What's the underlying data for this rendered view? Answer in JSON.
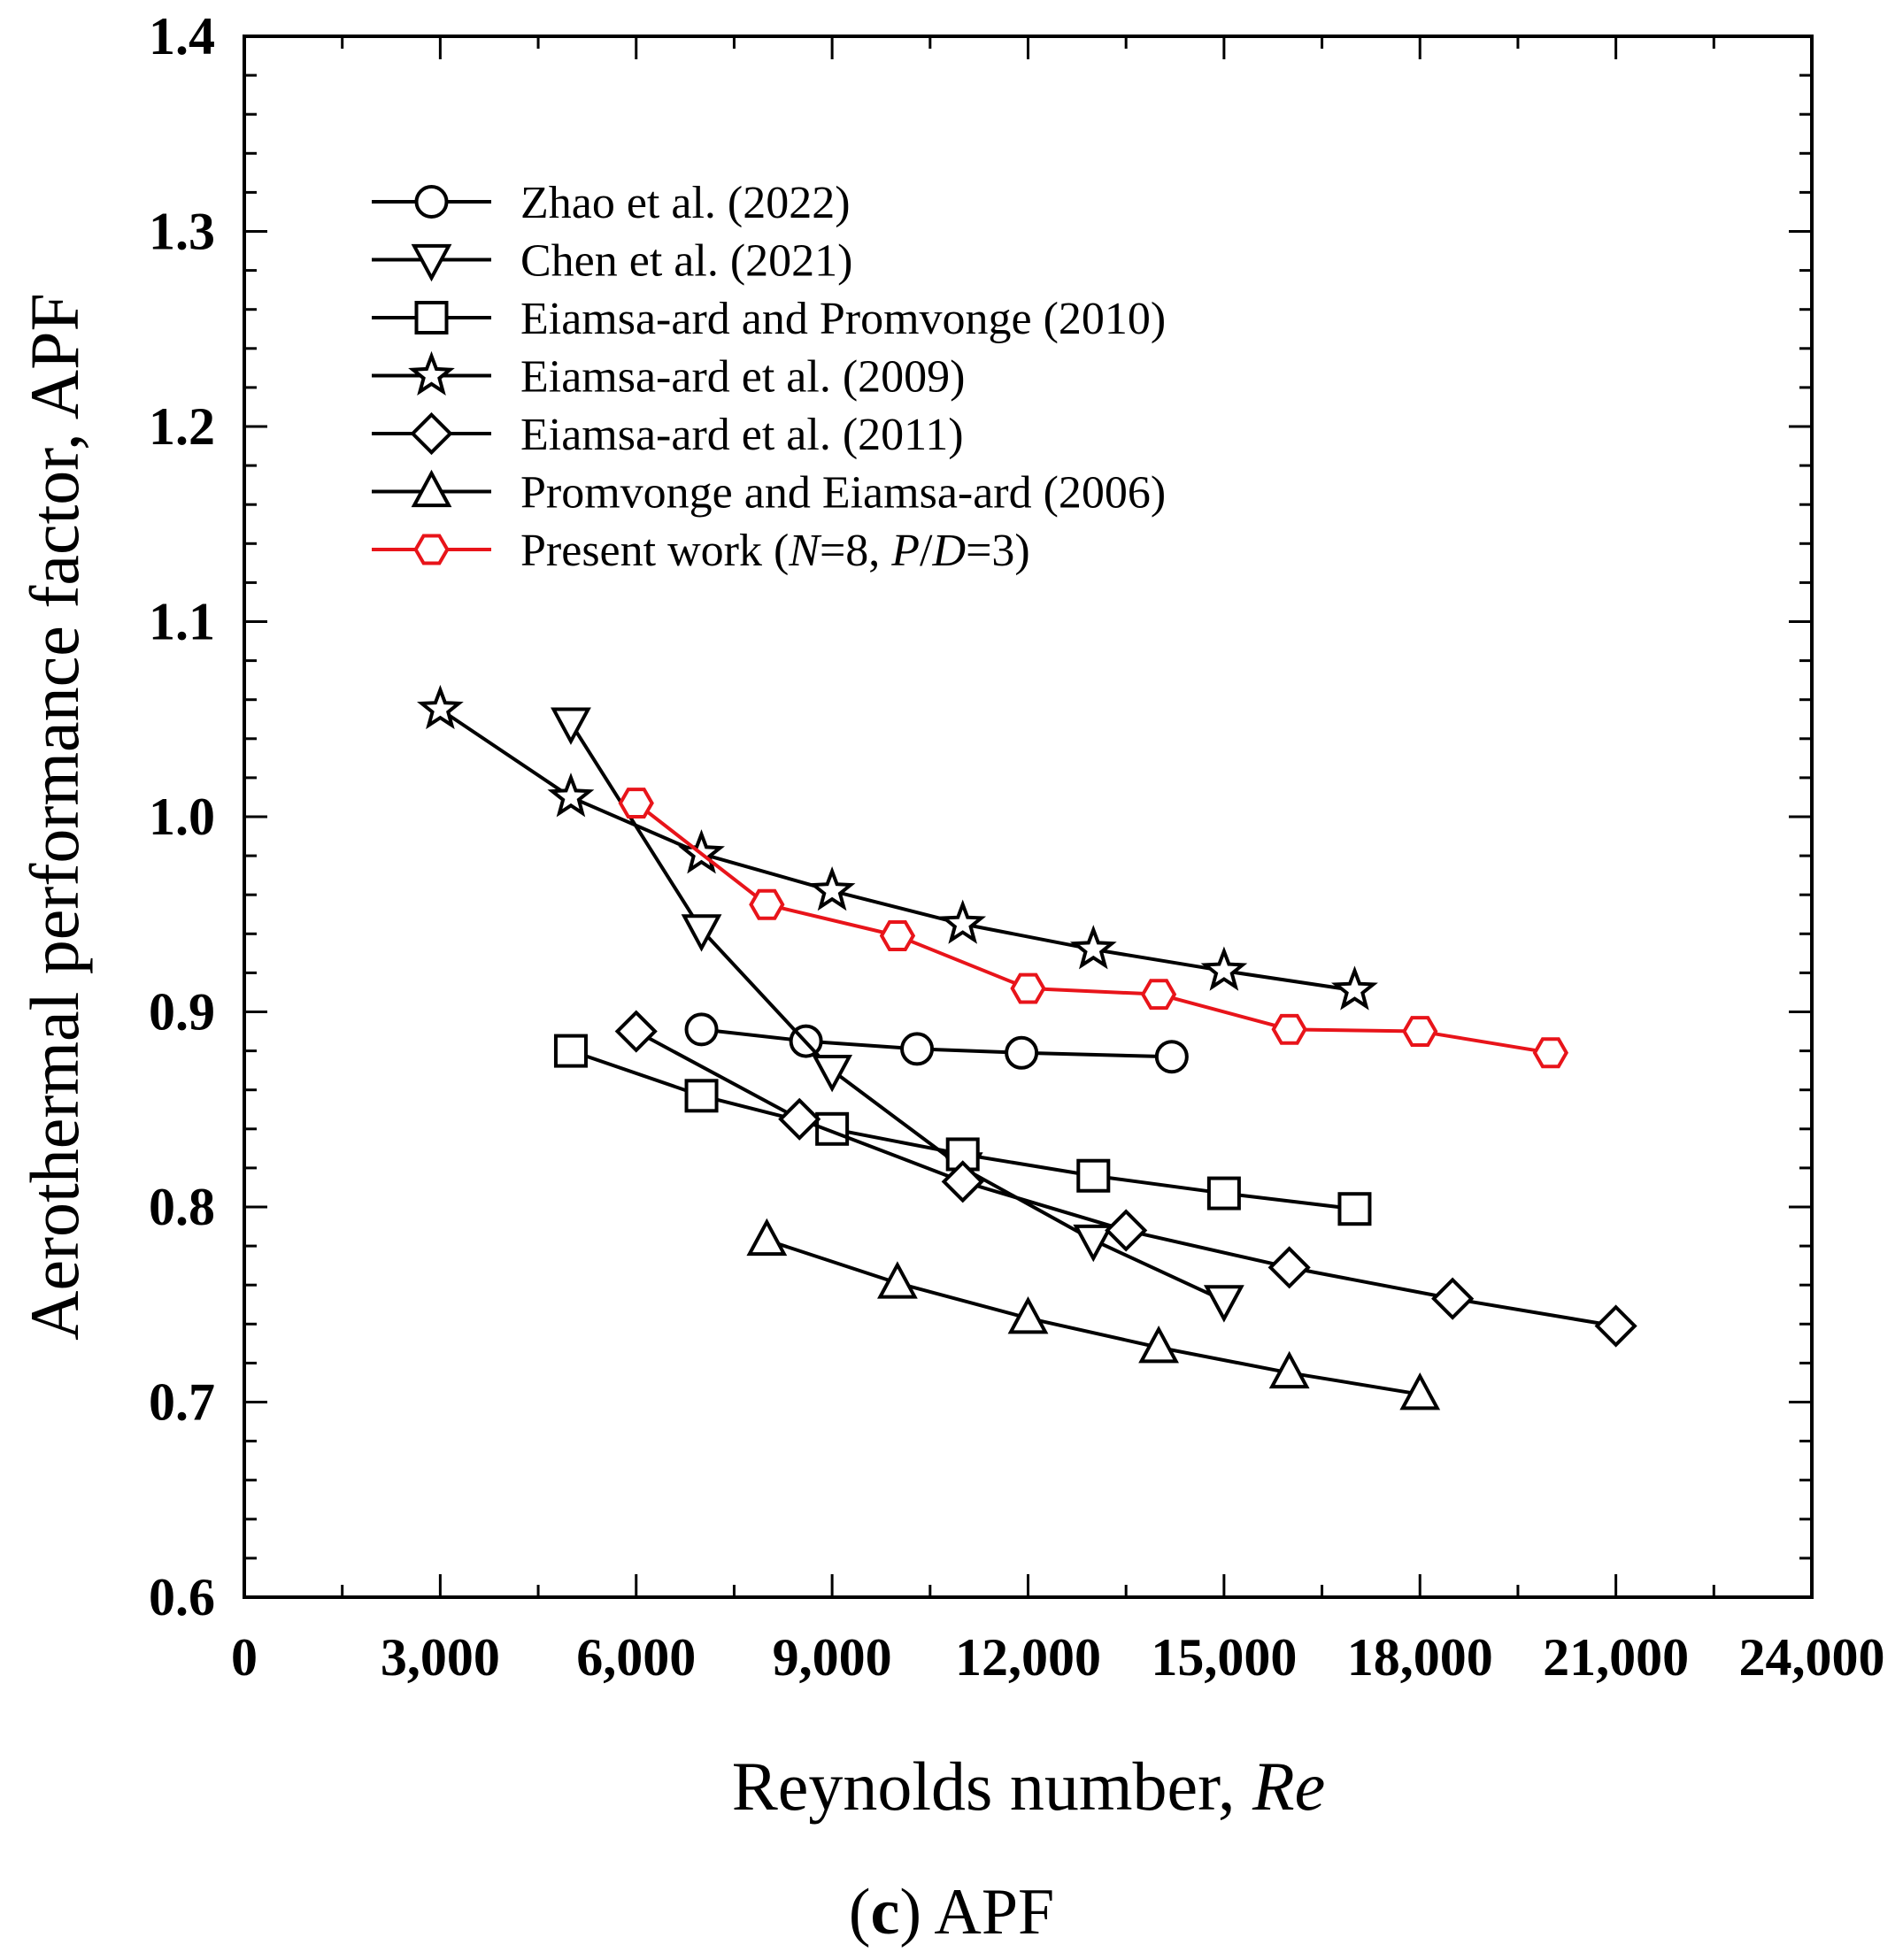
{
  "chart_data": {
    "type": "line",
    "xlabel": "Reynolds number, ",
    "xlabel_italic": "Re",
    "ylabel": "Aerothermal performance factor, APF",
    "caption_prefix": "(",
    "caption_letter": "c",
    "caption_suffix": ") APF",
    "xlim": [
      0,
      24000
    ],
    "ylim": [
      0.6,
      1.4
    ],
    "x_ticks": [
      0,
      3000,
      6000,
      9000,
      12000,
      15000,
      18000,
      21000,
      24000
    ],
    "x_tick_labels": [
      "0",
      "3,000",
      "6,000",
      "9,000",
      "12,000",
      "15,000",
      "18,000",
      "21,000",
      "24,000"
    ],
    "y_ticks": [
      0.6,
      0.7,
      0.8,
      0.9,
      1.0,
      1.1,
      1.2,
      1.3,
      1.4
    ],
    "y_tick_labels": [
      "0.6",
      "0.7",
      "0.8",
      "0.9",
      "1.0",
      "1.1",
      "1.2",
      "1.3",
      "1.4"
    ],
    "legend_position": "top-left",
    "series": [
      {
        "name": "Zhao et al. (2022)",
        "marker": "circle",
        "color": "#000000",
        "x": [
          7000,
          8600,
          10300,
          11900,
          14200
        ],
        "y": [
          0.891,
          0.885,
          0.881,
          0.879,
          0.877
        ]
      },
      {
        "name": "Chen et al. (2021)",
        "marker": "triangle-down",
        "color": "#000000",
        "x": [
          5000,
          7000,
          9000,
          11000,
          13000,
          15000
        ],
        "y": [
          1.048,
          0.942,
          0.87,
          0.82,
          0.783,
          0.752
        ]
      },
      {
        "name": "Eiamsa-ard and Promvonge (2010)",
        "marker": "square",
        "color": "#000000",
        "x": [
          5000,
          7000,
          9000,
          11000,
          13000,
          15000,
          17000
        ],
        "y": [
          0.88,
          0.857,
          0.84,
          0.827,
          0.816,
          0.807,
          0.799
        ]
      },
      {
        "name": "Eiamsa-ard et al. (2009)",
        "marker": "star",
        "color": "#000000",
        "x": [
          3000,
          5000,
          7000,
          9000,
          11000,
          13000,
          15000,
          17000
        ],
        "y": [
          1.055,
          1.01,
          0.981,
          0.962,
          0.945,
          0.932,
          0.921,
          0.911
        ]
      },
      {
        "name": "Eiamsa-ard et al. (2011)",
        "marker": "diamond",
        "color": "#000000",
        "x": [
          6000,
          8500,
          11000,
          13500,
          16000,
          18500,
          21000
        ],
        "y": [
          0.89,
          0.845,
          0.813,
          0.788,
          0.769,
          0.753,
          0.739
        ]
      },
      {
        "name": "Promvonge and Eiamsa-ard (2006)",
        "marker": "triangle-up",
        "color": "#000000",
        "x": [
          8000,
          10000,
          12000,
          14000,
          16000,
          18000
        ],
        "y": [
          0.783,
          0.761,
          0.743,
          0.728,
          0.715,
          0.704
        ]
      },
      {
        "name": "Present work (",
        "name_parts": [
          "Present work (",
          "N",
          "=8, ",
          "P",
          "/",
          "D",
          "=3)"
        ],
        "marker": "hexagon",
        "color": "#e8141a",
        "x": [
          6000,
          8000,
          10000,
          12000,
          14000,
          16000,
          18000,
          20000
        ],
        "y": [
          1.007,
          0.955,
          0.939,
          0.912,
          0.909,
          0.891,
          0.89,
          0.879
        ]
      }
    ]
  }
}
